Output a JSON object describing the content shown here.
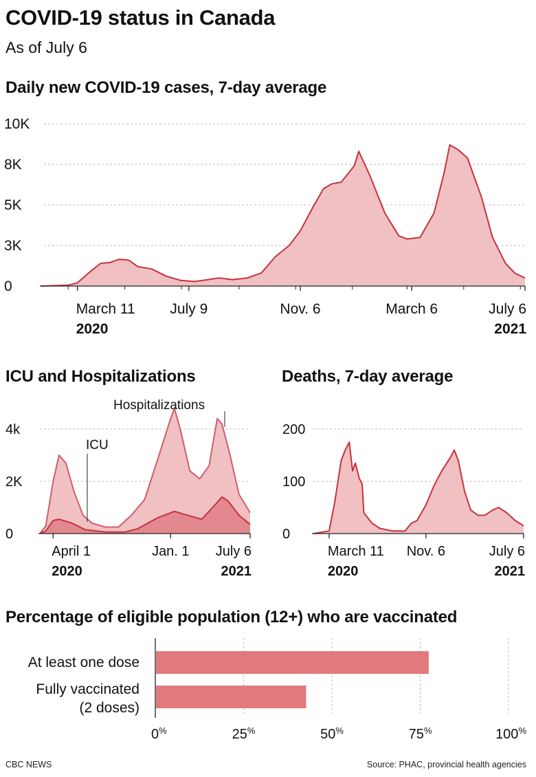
{
  "header": {
    "title": "COVID-19 status in Canada",
    "subtitle": "As of July 6"
  },
  "footer": {
    "credit": "CBC NEWS",
    "source": "Source: PHAC, provincial health agencies"
  },
  "colors": {
    "line": "#c8323c",
    "fill": "#f0c0c3",
    "bar": "#e07a7e",
    "grid": "#bbbbbb",
    "icu_fill": "#e2888e"
  },
  "chart_data": [
    {
      "type": "area",
      "title": "Daily new COVID-19 cases, 7-day average",
      "x_range": [
        "2020-02-01",
        "2021-07-06"
      ],
      "y_ticks": [
        {
          "value": 0,
          "label": "0"
        },
        {
          "value": 2500,
          "label": "3K"
        },
        {
          "value": 5000,
          "label": "5K"
        },
        {
          "value": 7500,
          "label": "8K"
        },
        {
          "value": 10000,
          "label": "10K"
        }
      ],
      "x_ticks": [
        {
          "date": "2020-03-11",
          "label": "March 11",
          "year": "2020"
        },
        {
          "date": "2020-07-09",
          "label": "July 9",
          "year": ""
        },
        {
          "date": "2020-11-06",
          "label": "Nov. 6",
          "year": ""
        },
        {
          "date": "2021-03-06",
          "label": "March 6",
          "year": ""
        },
        {
          "date": "2021-07-06",
          "label": "July 6",
          "year": "2021"
        }
      ],
      "ylim": [
        0,
        10000
      ],
      "grid": true,
      "series": [
        {
          "points": [
            [
              "2020-02-01",
              0
            ],
            [
              "2020-03-01",
              50
            ],
            [
              "2020-03-11",
              200
            ],
            [
              "2020-03-25",
              900
            ],
            [
              "2020-04-05",
              1400
            ],
            [
              "2020-04-15",
              1450
            ],
            [
              "2020-04-25",
              1650
            ],
            [
              "2020-05-05",
              1600
            ],
            [
              "2020-05-15",
              1200
            ],
            [
              "2020-05-30",
              1050
            ],
            [
              "2020-06-15",
              600
            ],
            [
              "2020-06-30",
              350
            ],
            [
              "2020-07-15",
              280
            ],
            [
              "2020-07-30",
              400
            ],
            [
              "2020-08-10",
              500
            ],
            [
              "2020-08-25",
              400
            ],
            [
              "2020-09-10",
              500
            ],
            [
              "2020-09-25",
              800
            ],
            [
              "2020-10-10",
              1800
            ],
            [
              "2020-10-25",
              2500
            ],
            [
              "2020-11-06",
              3400
            ],
            [
              "2020-11-20",
              4900
            ],
            [
              "2020-12-01",
              6000
            ],
            [
              "2020-12-10",
              6300
            ],
            [
              "2020-12-20",
              6400
            ],
            [
              "2021-01-03",
              7400
            ],
            [
              "2021-01-08",
              8300
            ],
            [
              "2021-01-20",
              6800
            ],
            [
              "2021-02-05",
              4500
            ],
            [
              "2021-02-20",
              3100
            ],
            [
              "2021-03-01",
              2900
            ],
            [
              "2021-03-15",
              3000
            ],
            [
              "2021-03-30",
              4500
            ],
            [
              "2021-04-10",
              7000
            ],
            [
              "2021-04-16",
              8700
            ],
            [
              "2021-04-25",
              8400
            ],
            [
              "2021-05-05",
              7900
            ],
            [
              "2021-05-20",
              5500
            ],
            [
              "2021-06-01",
              3000
            ],
            [
              "2021-06-15",
              1400
            ],
            [
              "2021-06-25",
              800
            ],
            [
              "2021-07-06",
              500
            ]
          ]
        }
      ]
    },
    {
      "type": "area",
      "title": "ICU and Hospitalizations",
      "x_range": [
        "2020-03-01",
        "2021-07-06"
      ],
      "y_ticks": [
        {
          "value": 0,
          "label": "0"
        },
        {
          "value": 2000,
          "label": "2K"
        },
        {
          "value": 4000,
          "label": "4k"
        }
      ],
      "x_ticks": [
        {
          "date": "2020-04-01",
          "label": "April 1",
          "year": "2020"
        },
        {
          "date": "2021-01-01",
          "label": "Jan. 1",
          "year": ""
        },
        {
          "date": "2021-07-06",
          "label": "July 6",
          "year": "2021"
        }
      ],
      "ylim": [
        0,
        5000
      ],
      "grid": true,
      "series": [
        {
          "name": "Hospitalizations",
          "points": [
            [
              "2020-03-01",
              0
            ],
            [
              "2020-03-15",
              300
            ],
            [
              "2020-04-01",
              2000
            ],
            [
              "2020-04-15",
              3000
            ],
            [
              "2020-05-01",
              2700
            ],
            [
              "2020-05-20",
              1600
            ],
            [
              "2020-06-10",
              700
            ],
            [
              "2020-07-01",
              400
            ],
            [
              "2020-08-01",
              250
            ],
            [
              "2020-09-01",
              250
            ],
            [
              "2020-10-01",
              700
            ],
            [
              "2020-11-01",
              1300
            ],
            [
              "2020-12-01",
              2800
            ],
            [
              "2021-01-01",
              4400
            ],
            [
              "2021-01-10",
              4800
            ],
            [
              "2021-01-25",
              3900
            ],
            [
              "2021-02-15",
              2400
            ],
            [
              "2021-03-10",
              2100
            ],
            [
              "2021-04-01",
              2600
            ],
            [
              "2021-04-20",
              4400
            ],
            [
              "2021-05-01",
              4200
            ],
            [
              "2021-05-20",
              3000
            ],
            [
              "2021-06-10",
              1500
            ],
            [
              "2021-07-06",
              800
            ]
          ]
        },
        {
          "name": "ICU",
          "points": [
            [
              "2020-03-01",
              0
            ],
            [
              "2020-03-15",
              100
            ],
            [
              "2020-04-01",
              500
            ],
            [
              "2020-04-15",
              550
            ],
            [
              "2020-05-15",
              400
            ],
            [
              "2020-06-15",
              150
            ],
            [
              "2020-08-01",
              60
            ],
            [
              "2020-09-15",
              60
            ],
            [
              "2020-10-15",
              180
            ],
            [
              "2020-12-01",
              600
            ],
            [
              "2021-01-10",
              850
            ],
            [
              "2021-02-10",
              700
            ],
            [
              "2021-03-15",
              550
            ],
            [
              "2021-04-15",
              1100
            ],
            [
              "2021-05-01",
              1400
            ],
            [
              "2021-05-15",
              1250
            ],
            [
              "2021-06-10",
              700
            ],
            [
              "2021-07-06",
              350
            ]
          ]
        }
      ],
      "annotations": [
        {
          "label": "Hospitalizations",
          "date": "2021-04-20",
          "value": 4400
        },
        {
          "label": "ICU",
          "date": "2020-06-15",
          "value": 150
        }
      ]
    },
    {
      "type": "area",
      "title": "Deaths, 7-day average",
      "x_range": [
        "2020-02-01",
        "2021-07-06"
      ],
      "y_ticks": [
        {
          "value": 0,
          "label": "0"
        },
        {
          "value": 100,
          "label": "100"
        },
        {
          "value": 200,
          "label": "200"
        }
      ],
      "x_ticks": [
        {
          "date": "2020-03-11",
          "label": "March 11",
          "year": "2020"
        },
        {
          "date": "2020-11-06",
          "label": "Nov. 6",
          "year": ""
        },
        {
          "date": "2021-07-06",
          "label": "July 6",
          "year": "2021"
        }
      ],
      "ylim": [
        0,
        250
      ],
      "grid": true,
      "series": [
        {
          "points": [
            [
              "2020-02-01",
              0
            ],
            [
              "2020-03-11",
              5
            ],
            [
              "2020-03-25",
              60
            ],
            [
              "2020-04-10",
              140
            ],
            [
              "2020-04-20",
              160
            ],
            [
              "2020-04-30",
              175
            ],
            [
              "2020-05-08",
              120
            ],
            [
              "2020-05-15",
              135
            ],
            [
              "2020-05-25",
              105
            ],
            [
              "2020-06-01",
              95
            ],
            [
              "2020-06-05",
              40
            ],
            [
              "2020-06-25",
              20
            ],
            [
              "2020-07-15",
              10
            ],
            [
              "2020-08-15",
              5
            ],
            [
              "2020-09-15",
              5
            ],
            [
              "2020-10-01",
              20
            ],
            [
              "2020-10-15",
              25
            ],
            [
              "2020-11-06",
              55
            ],
            [
              "2020-11-25",
              90
            ],
            [
              "2020-12-15",
              120
            ],
            [
              "2021-01-05",
              145
            ],
            [
              "2021-01-15",
              160
            ],
            [
              "2021-01-25",
              140
            ],
            [
              "2021-02-10",
              80
            ],
            [
              "2021-02-25",
              45
            ],
            [
              "2021-03-15",
              35
            ],
            [
              "2021-04-01",
              35
            ],
            [
              "2021-04-20",
              45
            ],
            [
              "2021-05-05",
              50
            ],
            [
              "2021-05-25",
              40
            ],
            [
              "2021-06-15",
              25
            ],
            [
              "2021-07-06",
              15
            ]
          ]
        }
      ]
    },
    {
      "type": "bar",
      "orientation": "horizontal",
      "title": "Percentage of eligible population (12+) who are vaccinated",
      "categories": [
        "At least one dose",
        "Fully vaccinated (2 doses)"
      ],
      "category_lines": [
        [
          "At least one dose"
        ],
        [
          "Fully vaccinated",
          "(2 doses)"
        ]
      ],
      "values": [
        77.4,
        42.7
      ],
      "xlim": [
        0,
        100
      ],
      "x_ticks": [
        {
          "value": 0,
          "label": "0",
          "unit": "%"
        },
        {
          "value": 25,
          "label": "25",
          "unit": "%"
        },
        {
          "value": 50,
          "label": "50",
          "unit": "%"
        },
        {
          "value": 75,
          "label": "75",
          "unit": "%"
        },
        {
          "value": 100,
          "label": "100",
          "unit": "%"
        }
      ],
      "grid": true
    }
  ]
}
